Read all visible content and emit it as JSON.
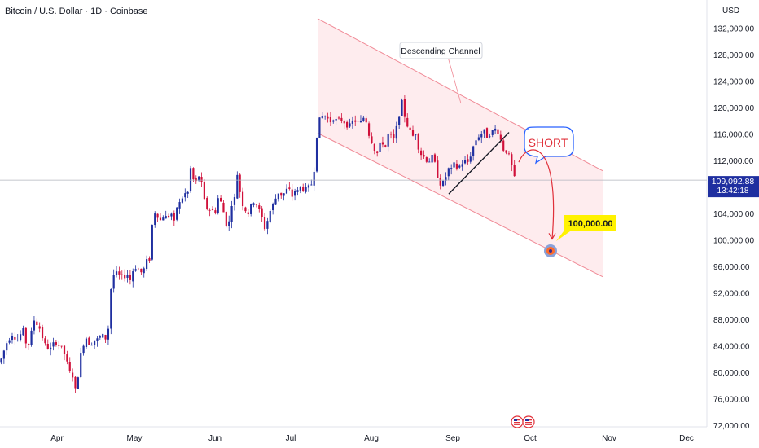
{
  "header": {
    "symbol": "Bitcoin / U.S. Dollar · 1D · Coinbase"
  },
  "axis": {
    "currency": "USD"
  },
  "price_tag": {
    "price": "109,092.88",
    "countdown": "13:42:18"
  },
  "annotations": {
    "channel": "Descending Channel",
    "short": "SHORT",
    "target": "100,000.00"
  },
  "colors": {
    "up": "#1f2fa0",
    "down": "#d0103a",
    "channel_line": "#f08a96",
    "channel_fill": "#fde5e8",
    "short_border": "#2962ff",
    "short_text": "#e0303a",
    "target_bg": "#fff200",
    "arrow": "#e0303a",
    "price_tag": "#1f2fa0"
  },
  "icons": {
    "target_marker": "target-icon",
    "events": "us-flag-icon"
  },
  "chart_data": {
    "type": "candlestick",
    "title": "Bitcoin / U.S. Dollar · 1D · Coinbase",
    "ylabel": "USD",
    "y_ticks": [
      "72,000.00",
      "76,000.00",
      "80,000.00",
      "84,000.00",
      "88,000.00",
      "92,000.00",
      "96,000.00",
      "100,000.00",
      "104,000.00",
      "108,000.00",
      "112,000.00",
      "116,000.00",
      "120,000.00",
      "124,000.00",
      "128,000.00",
      "132,000.00"
    ],
    "x_ticks": [
      "Apr",
      "May",
      "Jun",
      "Jul",
      "Aug",
      "Sep",
      "Oct",
      "Nov",
      "Dec"
    ],
    "last_price": 109092.88,
    "ylim": [
      71000,
      134500
    ],
    "close_path": [
      [
        0,
        81500
      ],
      [
        8,
        84500
      ],
      [
        15,
        85800
      ],
      [
        22,
        85000
      ],
      [
        28,
        86500
      ],
      [
        33,
        84000
      ],
      [
        36,
        84500
      ],
      [
        42,
        88000
      ],
      [
        48,
        87000
      ],
      [
        55,
        84200
      ],
      [
        62,
        83500
      ],
      [
        68,
        84800
      ],
      [
        74,
        84000
      ],
      [
        80,
        82600
      ],
      [
        85,
        80000
      ],
      [
        90,
        79500
      ],
      [
        94,
        76000
      ],
      [
        96,
        80000
      ],
      [
        98,
        82000
      ],
      [
        102,
        84300
      ],
      [
        106,
        85300
      ],
      [
        110,
        84300
      ],
      [
        115,
        84800
      ],
      [
        120,
        85000
      ],
      [
        125,
        85600
      ],
      [
        132,
        85000
      ],
      [
        136,
        92500
      ],
      [
        140,
        95000
      ],
      [
        145,
        94800
      ],
      [
        150,
        94300
      ],
      [
        156,
        95000
      ],
      [
        160,
        94000
      ],
      [
        165,
        96200
      ],
      [
        170,
        95500
      ],
      [
        175,
        95000
      ],
      [
        180,
        96800
      ],
      [
        183,
        96500
      ],
      [
        186,
        101000
      ],
      [
        188,
        104000
      ],
      [
        192,
        104500
      ],
      [
        196,
        102800
      ],
      [
        200,
        103700
      ],
      [
        205,
        103400
      ],
      [
        210,
        104200
      ],
      [
        214,
        102500
      ],
      [
        218,
        105700
      ],
      [
        222,
        105500
      ],
      [
        226,
        107500
      ],
      [
        230,
        106000
      ],
      [
        233,
        111500
      ],
      [
        236,
        109500
      ],
      [
        240,
        108500
      ],
      [
        244,
        109800
      ],
      [
        248,
        108300
      ],
      [
        252,
        105000
      ],
      [
        256,
        104800
      ],
      [
        260,
        104500
      ],
      [
        264,
        104300
      ],
      [
        268,
        106500
      ],
      [
        272,
        105500
      ],
      [
        276,
        103500
      ],
      [
        280,
        101500
      ],
      [
        284,
        105500
      ],
      [
        288,
        106300
      ],
      [
        292,
        110800
      ],
      [
        295,
        107000
      ],
      [
        298,
        105500
      ],
      [
        302,
        104500
      ],
      [
        306,
        104000
      ],
      [
        310,
        106000
      ],
      [
        314,
        105800
      ],
      [
        318,
        104500
      ],
      [
        322,
        103200
      ],
      [
        326,
        101500
      ],
      [
        330,
        104000
      ],
      [
        334,
        105000
      ],
      [
        338,
        106200
      ],
      [
        342,
        107300
      ],
      [
        346,
        106800
      ],
      [
        350,
        107200
      ],
      [
        354,
        108000
      ],
      [
        358,
        106500
      ],
      [
        362,
        107500
      ],
      [
        366,
        107300
      ],
      [
        370,
        108300
      ],
      [
        374,
        107500
      ],
      [
        378,
        107800
      ],
      [
        382,
        108300
      ],
      [
        386,
        111000
      ],
      [
        390,
        117500
      ],
      [
        394,
        118500
      ],
      [
        398,
        119000
      ],
      [
        402,
        118400
      ],
      [
        406,
        118000
      ],
      [
        410,
        118700
      ],
      [
        414,
        117800
      ],
      [
        418,
        118300
      ],
      [
        422,
        118000
      ],
      [
        426,
        117500
      ],
      [
        430,
        117200
      ],
      [
        434,
        118200
      ],
      [
        438,
        118000
      ],
      [
        442,
        117500
      ],
      [
        446,
        118600
      ],
      [
        450,
        118000
      ],
      [
        454,
        115500
      ],
      [
        458,
        114800
      ],
      [
        462,
        112700
      ],
      [
        466,
        114300
      ],
      [
        470,
        114800
      ],
      [
        474,
        114000
      ],
      [
        478,
        116800
      ],
      [
        482,
        114500
      ],
      [
        486,
        116400
      ],
      [
        490,
        119000
      ],
      [
        494,
        121000
      ],
      [
        498,
        118000
      ],
      [
        502,
        117000
      ],
      [
        506,
        115500
      ],
      [
        510,
        116500
      ],
      [
        514,
        114000
      ],
      [
        518,
        112800
      ],
      [
        522,
        112500
      ],
      [
        526,
        111800
      ],
      [
        530,
        112700
      ],
      [
        534,
        111500
      ],
      [
        538,
        109500
      ],
      [
        542,
        108200
      ],
      [
        546,
        109000
      ],
      [
        550,
        110800
      ],
      [
        554,
        110500
      ],
      [
        558,
        111500
      ],
      [
        562,
        110800
      ],
      [
        566,
        111500
      ],
      [
        570,
        112000
      ],
      [
        574,
        111700
      ],
      [
        578,
        113000
      ],
      [
        582,
        114500
      ],
      [
        586,
        115600
      ],
      [
        590,
        116000
      ],
      [
        594,
        116500
      ],
      [
        598,
        115800
      ],
      [
        602,
        116200
      ],
      [
        606,
        116500
      ],
      [
        610,
        117000
      ],
      [
        614,
        115500
      ],
      [
        618,
        113800
      ],
      [
        622,
        113500
      ],
      [
        626,
        112300
      ],
      [
        630,
        110300
      ],
      [
        632,
        109090
      ]
    ],
    "channel": {
      "upper": [
        [
          390,
          133500
        ],
        [
          740,
          110500
        ]
      ],
      "lower": [
        [
          390,
          116200
        ],
        [
          740,
          94500
        ]
      ]
    },
    "trendline": [
      [
        551,
        107000
      ],
      [
        625,
        116300
      ]
    ],
    "short_label_anchor": [
      676,
      115400
    ],
    "target_price": 100000,
    "projection_arrow": [
      [
        637,
        111800
      ],
      [
        678,
        100200
      ]
    ]
  }
}
